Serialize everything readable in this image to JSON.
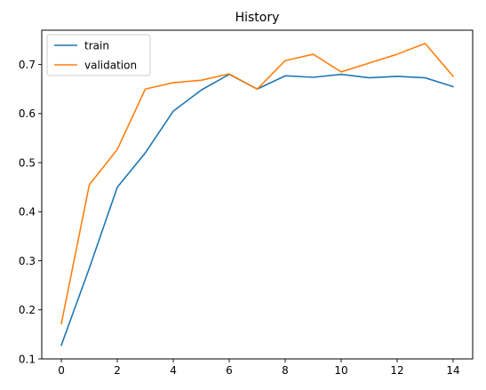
{
  "chart_data": {
    "type": "line",
    "title": "History",
    "xlabel": "",
    "ylabel": "",
    "x": [
      0,
      1,
      2,
      3,
      4,
      5,
      6,
      7,
      8,
      9,
      10,
      11,
      12,
      13,
      14
    ],
    "xlim": [
      -0.7,
      14.7
    ],
    "ylim": [
      0.1,
      0.77
    ],
    "xticks": [
      0,
      2,
      4,
      6,
      8,
      10,
      12,
      14
    ],
    "yticks": [
      0.1,
      0.2,
      0.3,
      0.4,
      0.5,
      0.6,
      0.7
    ],
    "ytick_labels": [
      "0.1",
      "0.2",
      "0.3",
      "0.4",
      "0.5",
      "0.6",
      "0.7"
    ],
    "grid": false,
    "legend": "top-left",
    "series": [
      {
        "name": "train",
        "color": "#1f77b4",
        "values": [
          0.128,
          0.285,
          0.45,
          0.52,
          0.605,
          0.648,
          0.68,
          0.65,
          0.677,
          0.674,
          0.68,
          0.673,
          0.676,
          0.673,
          0.655
        ]
      },
      {
        "name": "validation",
        "color": "#ff7f0e",
        "values": [
          0.172,
          0.455,
          0.527,
          0.65,
          0.663,
          0.668,
          0.681,
          0.65,
          0.708,
          0.721,
          0.685,
          0.703,
          0.721,
          0.743,
          0.676
        ]
      }
    ]
  }
}
